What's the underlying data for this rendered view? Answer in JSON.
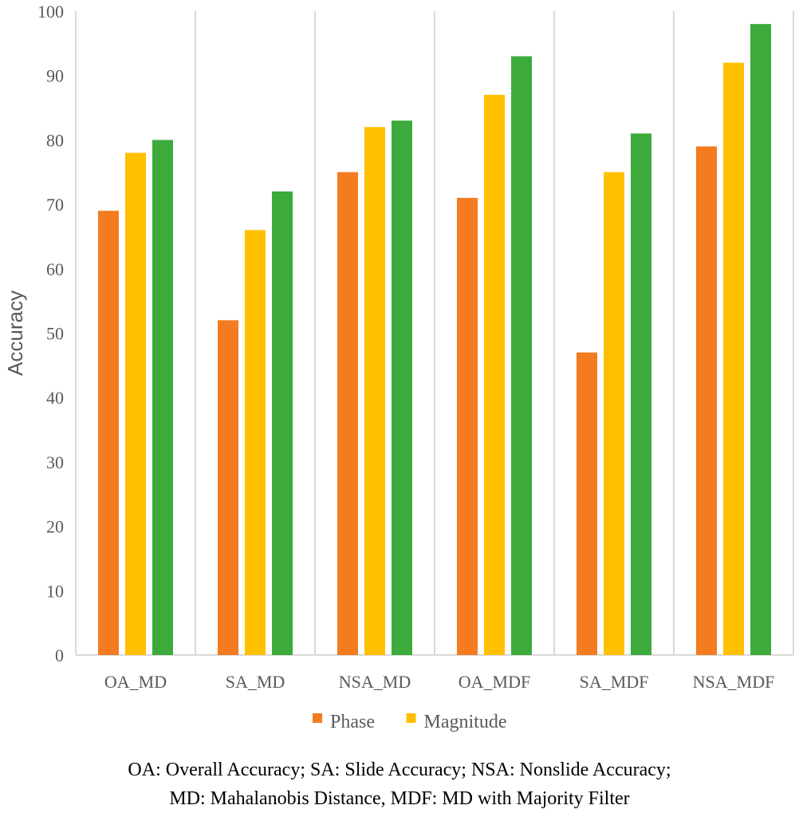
{
  "chart_data": {
    "type": "bar",
    "ylabel": "Accuracy",
    "xlabel": "",
    "ylim": [
      0,
      100
    ],
    "yticks": [
      0,
      10,
      20,
      30,
      40,
      50,
      60,
      70,
      80,
      90,
      100
    ],
    "categories": [
      "OA_MD",
      "SA_MD",
      "NSA_MD",
      "OA_MDF",
      "SA_MDF",
      "NSA_MDF"
    ],
    "series": [
      {
        "name": "Phase",
        "color": "#f47b20",
        "values": [
          69,
          52,
          75,
          71,
          47,
          79
        ]
      },
      {
        "name": "Magnitude",
        "color": "#ffc000",
        "values": [
          78,
          66,
          82,
          87,
          75,
          92
        ]
      },
      {
        "color": "#3cab3c",
        "values": [
          80,
          72,
          83,
          93,
          81,
          98
        ]
      }
    ],
    "grid": "vertical separators",
    "legend_position": "bottom"
  },
  "footnote": {
    "line1": "OA: Overall Accuracy;  SA: Slide Accuracy;  NSA: Nonslide Accuracy;",
    "line2": "MD: Mahalanobis Distance, MDF: MD with Majority Filter"
  }
}
